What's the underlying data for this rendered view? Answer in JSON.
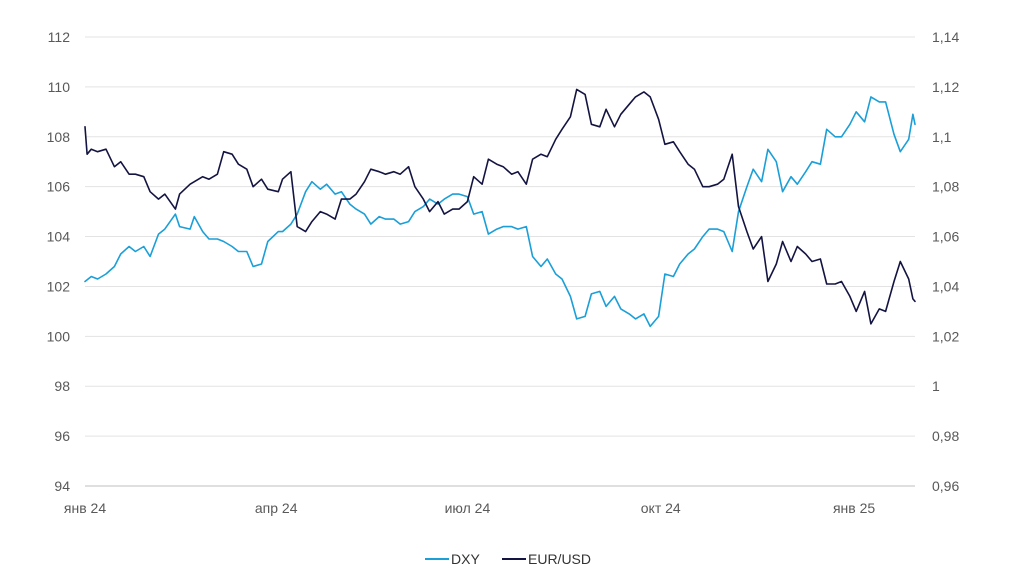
{
  "chart_data": {
    "type": "line",
    "x_tick_labels": [
      "янв 24",
      "апр 24",
      "июл 24",
      "окт 24",
      "янв 25"
    ],
    "x_tick_dates": [
      "2024-01-02",
      "2024-04-02",
      "2024-07-02",
      "2024-10-02",
      "2025-01-02"
    ],
    "x_range": [
      "2024-01-02",
      "2025-01-31"
    ],
    "y_left": {
      "ticks": [
        112,
        110,
        108,
        106,
        104,
        102,
        100,
        98,
        96,
        94
      ],
      "ylim": [
        94,
        112
      ]
    },
    "y_right": {
      "ticks": [
        "1,14",
        "1,12",
        "1,1",
        "1,08",
        "1,06",
        "1,04",
        "1,02",
        "1",
        "0,98",
        "0,96"
      ],
      "ylim": [
        0.96,
        1.14
      ]
    },
    "grid": true,
    "legend_position": "bottom",
    "series": [
      {
        "name": "DXY",
        "axis": "left",
        "color": "#1a9fd8",
        "points": [
          [
            "2024-01-02",
            102.2
          ],
          [
            "2024-01-05",
            102.4
          ],
          [
            "2024-01-08",
            102.3
          ],
          [
            "2024-01-12",
            102.5
          ],
          [
            "2024-01-16",
            102.8
          ],
          [
            "2024-01-19",
            103.3
          ],
          [
            "2024-01-23",
            103.6
          ],
          [
            "2024-01-26",
            103.4
          ],
          [
            "2024-01-30",
            103.6
          ],
          [
            "2024-02-02",
            103.2
          ],
          [
            "2024-02-06",
            104.1
          ],
          [
            "2024-02-09",
            104.3
          ],
          [
            "2024-02-14",
            104.9
          ],
          [
            "2024-02-16",
            104.4
          ],
          [
            "2024-02-21",
            104.3
          ],
          [
            "2024-02-23",
            104.8
          ],
          [
            "2024-02-27",
            104.2
          ],
          [
            "2024-03-01",
            103.9
          ],
          [
            "2024-03-05",
            103.9
          ],
          [
            "2024-03-08",
            103.8
          ],
          [
            "2024-03-12",
            103.6
          ],
          [
            "2024-03-15",
            103.4
          ],
          [
            "2024-03-19",
            103.4
          ],
          [
            "2024-03-22",
            102.8
          ],
          [
            "2024-03-26",
            102.9
          ],
          [
            "2024-03-29",
            103.8
          ],
          [
            "2024-04-03",
            104.2
          ],
          [
            "2024-04-05",
            104.2
          ],
          [
            "2024-04-09",
            104.5
          ],
          [
            "2024-04-12",
            104.9
          ],
          [
            "2024-04-16",
            105.8
          ],
          [
            "2024-04-19",
            106.2
          ],
          [
            "2024-04-23",
            105.9
          ],
          [
            "2024-04-26",
            106.1
          ],
          [
            "2024-04-30",
            105.7
          ],
          [
            "2024-05-03",
            105.8
          ],
          [
            "2024-05-07",
            105.3
          ],
          [
            "2024-05-10",
            105.1
          ],
          [
            "2024-05-14",
            104.9
          ],
          [
            "2024-05-17",
            104.5
          ],
          [
            "2024-05-21",
            104.8
          ],
          [
            "2024-05-24",
            104.7
          ],
          [
            "2024-05-28",
            104.7
          ],
          [
            "2024-05-31",
            104.5
          ],
          [
            "2024-06-04",
            104.6
          ],
          [
            "2024-06-07",
            105.0
          ],
          [
            "2024-06-11",
            105.2
          ],
          [
            "2024-06-14",
            105.5
          ],
          [
            "2024-06-18",
            105.3
          ],
          [
            "2024-06-21",
            105.5
          ],
          [
            "2024-06-25",
            105.7
          ],
          [
            "2024-06-28",
            105.7
          ],
          [
            "2024-07-02",
            105.6
          ],
          [
            "2024-07-05",
            104.9
          ],
          [
            "2024-07-09",
            105.0
          ],
          [
            "2024-07-12",
            104.1
          ],
          [
            "2024-07-16",
            104.3
          ],
          [
            "2024-07-19",
            104.4
          ],
          [
            "2024-07-23",
            104.4
          ],
          [
            "2024-07-26",
            104.3
          ],
          [
            "2024-07-30",
            104.4
          ],
          [
            "2024-08-02",
            103.2
          ],
          [
            "2024-08-06",
            102.8
          ],
          [
            "2024-08-09",
            103.1
          ],
          [
            "2024-08-13",
            102.5
          ],
          [
            "2024-08-16",
            102.3
          ],
          [
            "2024-08-20",
            101.6
          ],
          [
            "2024-08-23",
            100.7
          ],
          [
            "2024-08-27",
            100.8
          ],
          [
            "2024-08-30",
            101.7
          ],
          [
            "2024-09-03",
            101.8
          ],
          [
            "2024-09-06",
            101.2
          ],
          [
            "2024-09-10",
            101.6
          ],
          [
            "2024-09-13",
            101.1
          ],
          [
            "2024-09-17",
            100.9
          ],
          [
            "2024-09-20",
            100.7
          ],
          [
            "2024-09-24",
            100.9
          ],
          [
            "2024-09-27",
            100.4
          ],
          [
            "2024-10-01",
            100.8
          ],
          [
            "2024-10-04",
            102.5
          ],
          [
            "2024-10-08",
            102.4
          ],
          [
            "2024-10-11",
            102.9
          ],
          [
            "2024-10-15",
            103.3
          ],
          [
            "2024-10-18",
            103.5
          ],
          [
            "2024-10-22",
            104.0
          ],
          [
            "2024-10-25",
            104.3
          ],
          [
            "2024-10-29",
            104.3
          ],
          [
            "2024-11-01",
            104.2
          ],
          [
            "2024-11-05",
            103.4
          ],
          [
            "2024-11-08",
            105.0
          ],
          [
            "2024-11-12",
            106.0
          ],
          [
            "2024-11-15",
            106.7
          ],
          [
            "2024-11-19",
            106.2
          ],
          [
            "2024-11-22",
            107.5
          ],
          [
            "2024-11-26",
            107.0
          ],
          [
            "2024-11-29",
            105.8
          ],
          [
            "2024-12-03",
            106.4
          ],
          [
            "2024-12-06",
            106.1
          ],
          [
            "2024-12-10",
            106.6
          ],
          [
            "2024-12-13",
            107.0
          ],
          [
            "2024-12-17",
            106.9
          ],
          [
            "2024-12-20",
            108.3
          ],
          [
            "2024-12-24",
            108.0
          ],
          [
            "2024-12-27",
            108.0
          ],
          [
            "2024-12-31",
            108.5
          ],
          [
            "2025-01-03",
            109.0
          ],
          [
            "2025-01-07",
            108.6
          ],
          [
            "2025-01-10",
            109.6
          ],
          [
            "2025-01-14",
            109.4
          ],
          [
            "2025-01-17",
            109.4
          ],
          [
            "2025-01-21",
            108.1
          ],
          [
            "2025-01-24",
            107.4
          ],
          [
            "2025-01-28",
            107.9
          ],
          [
            "2025-01-30",
            108.9
          ],
          [
            "2025-01-31",
            108.5
          ]
        ]
      },
      {
        "name": "EUR/USD",
        "axis": "right",
        "color": "#141442",
        "points": [
          [
            "2024-01-02",
            1.104
          ],
          [
            "2024-01-03",
            1.093
          ],
          [
            "2024-01-05",
            1.095
          ],
          [
            "2024-01-08",
            1.094
          ],
          [
            "2024-01-12",
            1.095
          ],
          [
            "2024-01-16",
            1.088
          ],
          [
            "2024-01-19",
            1.09
          ],
          [
            "2024-01-23",
            1.085
          ],
          [
            "2024-01-26",
            1.085
          ],
          [
            "2024-01-30",
            1.084
          ],
          [
            "2024-02-02",
            1.078
          ],
          [
            "2024-02-06",
            1.075
          ],
          [
            "2024-02-09",
            1.077
          ],
          [
            "2024-02-14",
            1.071
          ],
          [
            "2024-02-16",
            1.077
          ],
          [
            "2024-02-21",
            1.081
          ],
          [
            "2024-02-23",
            1.082
          ],
          [
            "2024-02-27",
            1.084
          ],
          [
            "2024-03-01",
            1.083
          ],
          [
            "2024-03-05",
            1.085
          ],
          [
            "2024-03-08",
            1.094
          ],
          [
            "2024-03-12",
            1.093
          ],
          [
            "2024-03-15",
            1.089
          ],
          [
            "2024-03-19",
            1.087
          ],
          [
            "2024-03-22",
            1.08
          ],
          [
            "2024-03-26",
            1.083
          ],
          [
            "2024-03-29",
            1.079
          ],
          [
            "2024-04-03",
            1.078
          ],
          [
            "2024-04-05",
            1.083
          ],
          [
            "2024-04-09",
            1.086
          ],
          [
            "2024-04-12",
            1.064
          ],
          [
            "2024-04-16",
            1.062
          ],
          [
            "2024-04-19",
            1.066
          ],
          [
            "2024-04-23",
            1.07
          ],
          [
            "2024-04-26",
            1.069
          ],
          [
            "2024-04-30",
            1.067
          ],
          [
            "2024-05-03",
            1.075
          ],
          [
            "2024-05-07",
            1.075
          ],
          [
            "2024-05-10",
            1.077
          ],
          [
            "2024-05-14",
            1.082
          ],
          [
            "2024-05-17",
            1.087
          ],
          [
            "2024-05-21",
            1.086
          ],
          [
            "2024-05-24",
            1.085
          ],
          [
            "2024-05-28",
            1.086
          ],
          [
            "2024-05-31",
            1.085
          ],
          [
            "2024-06-04",
            1.088
          ],
          [
            "2024-06-07",
            1.08
          ],
          [
            "2024-06-11",
            1.075
          ],
          [
            "2024-06-14",
            1.07
          ],
          [
            "2024-06-18",
            1.074
          ],
          [
            "2024-06-21",
            1.069
          ],
          [
            "2024-06-25",
            1.071
          ],
          [
            "2024-06-28",
            1.071
          ],
          [
            "2024-07-02",
            1.074
          ],
          [
            "2024-07-05",
            1.084
          ],
          [
            "2024-07-09",
            1.081
          ],
          [
            "2024-07-12",
            1.091
          ],
          [
            "2024-07-16",
            1.089
          ],
          [
            "2024-07-19",
            1.088
          ],
          [
            "2024-07-23",
            1.085
          ],
          [
            "2024-07-26",
            1.086
          ],
          [
            "2024-07-30",
            1.081
          ],
          [
            "2024-08-02",
            1.091
          ],
          [
            "2024-08-06",
            1.093
          ],
          [
            "2024-08-09",
            1.092
          ],
          [
            "2024-08-13",
            1.099
          ],
          [
            "2024-08-16",
            1.103
          ],
          [
            "2024-08-20",
            1.108
          ],
          [
            "2024-08-23",
            1.119
          ],
          [
            "2024-08-27",
            1.117
          ],
          [
            "2024-08-30",
            1.105
          ],
          [
            "2024-09-03",
            1.104
          ],
          [
            "2024-09-06",
            1.111
          ],
          [
            "2024-09-10",
            1.104
          ],
          [
            "2024-09-13",
            1.109
          ],
          [
            "2024-09-17",
            1.113
          ],
          [
            "2024-09-20",
            1.116
          ],
          [
            "2024-09-24",
            1.118
          ],
          [
            "2024-09-27",
            1.116
          ],
          [
            "2024-10-01",
            1.107
          ],
          [
            "2024-10-04",
            1.097
          ],
          [
            "2024-10-08",
            1.098
          ],
          [
            "2024-10-11",
            1.094
          ],
          [
            "2024-10-15",
            1.089
          ],
          [
            "2024-10-18",
            1.087
          ],
          [
            "2024-10-22",
            1.08
          ],
          [
            "2024-10-25",
            1.08
          ],
          [
            "2024-10-29",
            1.081
          ],
          [
            "2024-11-01",
            1.083
          ],
          [
            "2024-11-05",
            1.093
          ],
          [
            "2024-11-08",
            1.072
          ],
          [
            "2024-11-12",
            1.062
          ],
          [
            "2024-11-15",
            1.055
          ],
          [
            "2024-11-19",
            1.06
          ],
          [
            "2024-11-22",
            1.042
          ],
          [
            "2024-11-26",
            1.049
          ],
          [
            "2024-11-29",
            1.058
          ],
          [
            "2024-12-03",
            1.05
          ],
          [
            "2024-12-06",
            1.056
          ],
          [
            "2024-12-10",
            1.053
          ],
          [
            "2024-12-13",
            1.05
          ],
          [
            "2024-12-17",
            1.051
          ],
          [
            "2024-12-20",
            1.041
          ],
          [
            "2024-12-24",
            1.041
          ],
          [
            "2024-12-27",
            1.042
          ],
          [
            "2024-12-31",
            1.036
          ],
          [
            "2025-01-03",
            1.03
          ],
          [
            "2025-01-07",
            1.038
          ],
          [
            "2025-01-10",
            1.025
          ],
          [
            "2025-01-14",
            1.031
          ],
          [
            "2025-01-17",
            1.03
          ],
          [
            "2025-01-21",
            1.042
          ],
          [
            "2025-01-24",
            1.05
          ],
          [
            "2025-01-28",
            1.043
          ],
          [
            "2025-01-30",
            1.035
          ],
          [
            "2025-01-31",
            1.034
          ]
        ]
      }
    ]
  }
}
